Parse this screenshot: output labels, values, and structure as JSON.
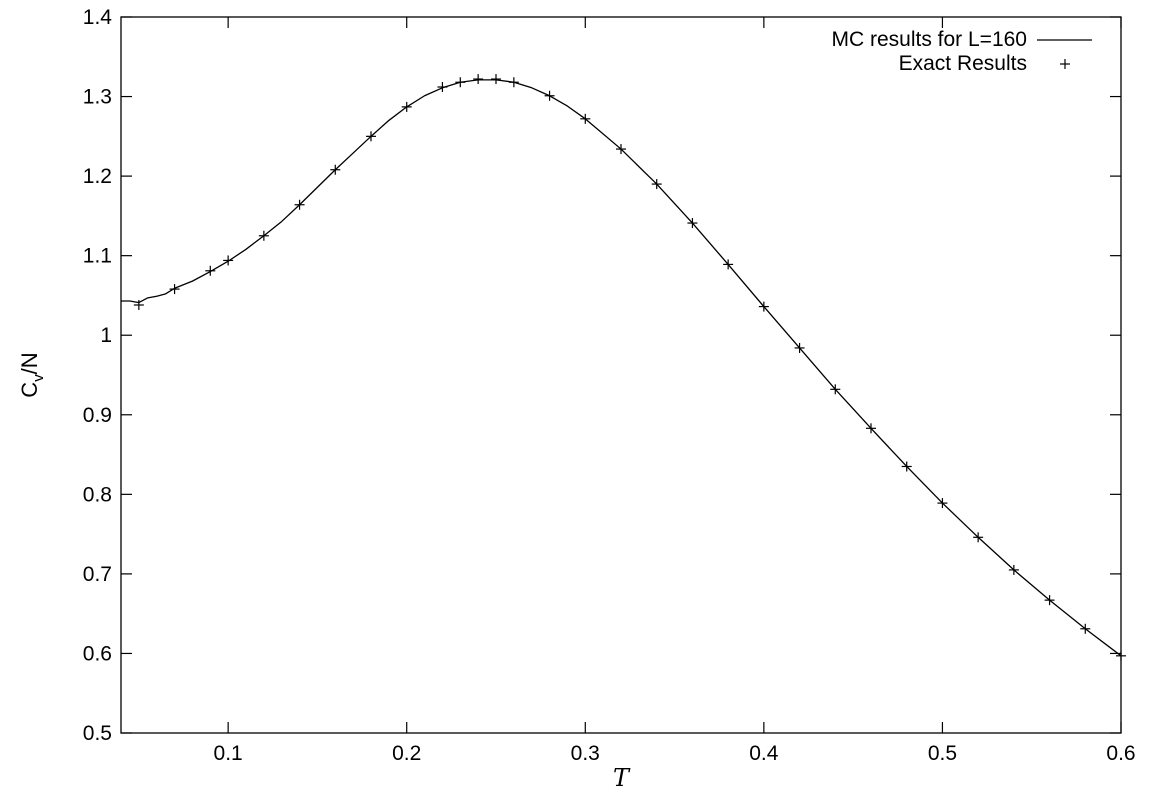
{
  "chart_data": {
    "type": "line",
    "xlabel": "T",
    "ylabel_main": "C",
    "ylabel_sub": "v",
    "ylabel_rest": "/N",
    "xlim": [
      0.04,
      0.6
    ],
    "ylim": [
      0.5,
      1.4
    ],
    "x_ticks": [
      0.1,
      0.2,
      0.3,
      0.4,
      0.5,
      0.6
    ],
    "y_ticks": [
      0.5,
      0.6,
      0.7,
      0.8,
      0.9,
      1.0,
      1.1,
      1.2,
      1.3,
      1.4
    ],
    "x_tick_labels": [
      "0.1",
      "0.2",
      "0.3",
      "0.4",
      "0.5",
      "0.6"
    ],
    "y_tick_labels": [
      "0.5",
      "0.6",
      "0.7",
      "0.8",
      "0.9",
      "1",
      "1.1",
      "1.2",
      "1.3",
      "1.4"
    ],
    "grid": false,
    "legend_position": "top-right",
    "colors": {
      "line": "#000000",
      "points": "#000000",
      "axis": "#000000"
    },
    "series": [
      {
        "name": "MC results for L=160",
        "style": "line",
        "x": [
          0.04,
          0.045,
          0.05,
          0.055,
          0.06,
          0.065,
          0.07,
          0.08,
          0.09,
          0.1,
          0.11,
          0.12,
          0.13,
          0.14,
          0.15,
          0.16,
          0.17,
          0.18,
          0.19,
          0.2,
          0.21,
          0.22,
          0.23,
          0.24,
          0.25,
          0.26,
          0.27,
          0.28,
          0.29,
          0.3,
          0.32,
          0.34,
          0.36,
          0.38,
          0.4,
          0.42,
          0.44,
          0.46,
          0.48,
          0.5,
          0.52,
          0.54,
          0.56,
          0.58,
          0.6
        ],
        "y": [
          1.043,
          1.043,
          1.041,
          1.047,
          1.049,
          1.052,
          1.059,
          1.068,
          1.08,
          1.093,
          1.108,
          1.125,
          1.143,
          1.164,
          1.186,
          1.208,
          1.229,
          1.25,
          1.27,
          1.287,
          1.301,
          1.311,
          1.318,
          1.321,
          1.321,
          1.318,
          1.311,
          1.301,
          1.288,
          1.272,
          1.234,
          1.19,
          1.141,
          1.089,
          1.036,
          0.984,
          0.932,
          0.883,
          0.835,
          0.789,
          0.746,
          0.705,
          0.667,
          0.631,
          0.597
        ]
      },
      {
        "name": "Exact Results",
        "style": "points",
        "x": [
          0.05,
          0.07,
          0.09,
          0.1,
          0.12,
          0.14,
          0.16,
          0.18,
          0.2,
          0.22,
          0.23,
          0.24,
          0.25,
          0.26,
          0.28,
          0.3,
          0.32,
          0.34,
          0.36,
          0.38,
          0.4,
          0.42,
          0.44,
          0.46,
          0.48,
          0.5,
          0.52,
          0.54,
          0.56,
          0.58,
          0.6
        ],
        "y": [
          1.038,
          1.058,
          1.081,
          1.094,
          1.125,
          1.164,
          1.208,
          1.25,
          1.287,
          1.312,
          1.318,
          1.322,
          1.322,
          1.318,
          1.301,
          1.272,
          1.234,
          1.19,
          1.141,
          1.089,
          1.036,
          0.984,
          0.932,
          0.883,
          0.835,
          0.789,
          0.746,
          0.705,
          0.667,
          0.631,
          0.597
        ]
      }
    ]
  }
}
